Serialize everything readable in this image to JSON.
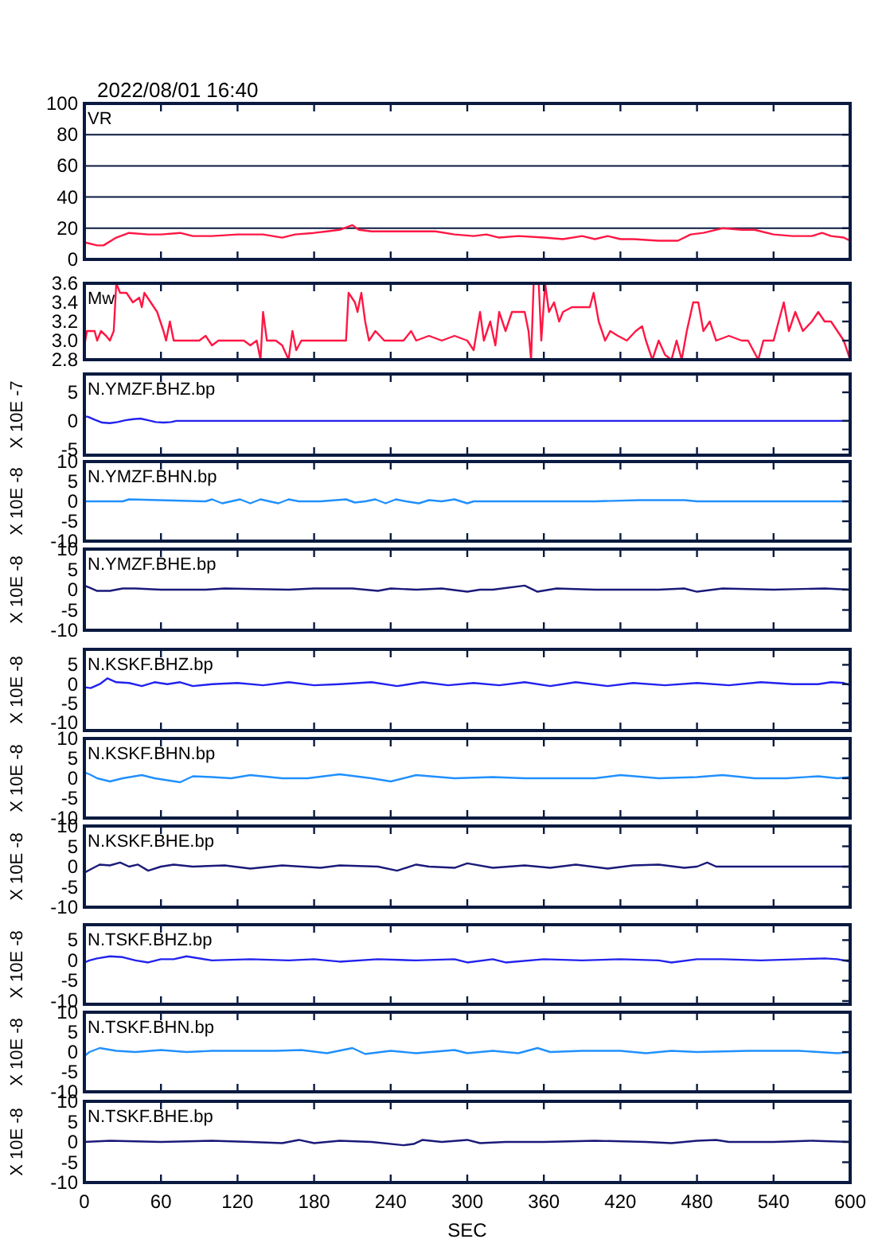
{
  "chart_data": [
    {
      "type": "line",
      "subtitle": "2022/08/01 16:40",
      "title": "VR",
      "xlim": [
        0,
        600
      ],
      "xticks": [
        0,
        60,
        120,
        180,
        240,
        300,
        360,
        420,
        480,
        540,
        600
      ],
      "ylim": [
        0,
        100
      ],
      "yticks": [
        0,
        20,
        40,
        60,
        80,
        100
      ],
      "grid": "y",
      "tick_labels": "y",
      "series": [
        {
          "color": "#ff1744",
          "x": [
            0,
            10,
            15,
            25,
            35,
            50,
            60,
            75,
            85,
            100,
            120,
            140,
            155,
            165,
            180,
            190,
            200,
            210,
            215,
            225,
            240,
            260,
            275,
            290,
            305,
            315,
            325,
            340,
            360,
            375,
            390,
            400,
            410,
            420,
            430,
            450,
            465,
            475,
            485,
            500,
            515,
            525,
            540,
            555,
            570,
            578,
            585,
            595,
            600
          ],
          "values": [
            11,
            9,
            9,
            14,
            17,
            16,
            16,
            17,
            15,
            15,
            16,
            16,
            14,
            16,
            17,
            18,
            19,
            22,
            19,
            18,
            18,
            18,
            18,
            16,
            15,
            16,
            14,
            15,
            14,
            13,
            15,
            13,
            15,
            13,
            13,
            12,
            12,
            16,
            17,
            20,
            19,
            19,
            16,
            15,
            15,
            17,
            15,
            14,
            12
          ]
        }
      ]
    },
    {
      "type": "line",
      "title": "Mw",
      "xlim": [
        0,
        600
      ],
      "xticks": [
        0,
        60,
        120,
        180,
        240,
        300,
        360,
        420,
        480,
        540,
        600
      ],
      "ylim": [
        2.8,
        3.6
      ],
      "yticks": [
        {
          "value": 2.8,
          "label": "2.8"
        },
        {
          "value": 3,
          "label": "3.0"
        },
        {
          "value": 3.2,
          "label": "3.2"
        },
        {
          "value": 3.4,
          "label": "3.4"
        },
        {
          "value": 3.6,
          "label": "3.6"
        }
      ],
      "tick_labels": "y",
      "series": [
        {
          "color": "#ff1744",
          "x": [
            0,
            2,
            8,
            10,
            13,
            17,
            20,
            23,
            25,
            28,
            33,
            38,
            43,
            45,
            47,
            52,
            57,
            62,
            64,
            67,
            70,
            80,
            90,
            95,
            100,
            105,
            115,
            125,
            130,
            135,
            138,
            140,
            143,
            150,
            155,
            160,
            163,
            166,
            170,
            180,
            195,
            205,
            207,
            212,
            214,
            217,
            220,
            223,
            228,
            235,
            245,
            250,
            256,
            260,
            270,
            280,
            290,
            300,
            305,
            310,
            313,
            318,
            322,
            325,
            330,
            335,
            345,
            348,
            350,
            352,
            356,
            358,
            361,
            364,
            368,
            372,
            375,
            382,
            388,
            396,
            399,
            403,
            408,
            412,
            418,
            425,
            432,
            437,
            440,
            445,
            450,
            455,
            460,
            464,
            468,
            472,
            477,
            481,
            485,
            490,
            495,
            505,
            515,
            520,
            528,
            532,
            540,
            548,
            552,
            557,
            563,
            570,
            575,
            580,
            585,
            590,
            595,
            600
          ],
          "values": [
            2.95,
            3.1,
            3.1,
            3.0,
            3.1,
            3.05,
            3.0,
            3.1,
            3.6,
            3.5,
            3.5,
            3.4,
            3.45,
            3.35,
            3.5,
            3.4,
            3.3,
            3.1,
            3.0,
            3.2,
            3.0,
            3.0,
            3.0,
            3.05,
            2.95,
            3.0,
            3.0,
            3.0,
            2.95,
            3.0,
            2.8,
            3.3,
            3.0,
            3.0,
            2.95,
            2.8,
            3.1,
            2.9,
            3.0,
            3.0,
            3.0,
            3.0,
            3.5,
            3.4,
            3.3,
            3.5,
            3.2,
            3.0,
            3.1,
            3.0,
            3.0,
            3.0,
            3.1,
            3.0,
            3.05,
            3.0,
            3.05,
            3.0,
            2.9,
            3.3,
            3.0,
            3.2,
            2.95,
            3.3,
            3.1,
            3.3,
            3.3,
            3.1,
            2.8,
            3.6,
            3.6,
            3.0,
            3.6,
            3.3,
            3.4,
            3.2,
            3.3,
            3.35,
            3.35,
            3.35,
            3.5,
            3.2,
            3.0,
            3.1,
            3.05,
            3.0,
            3.1,
            3.15,
            3.0,
            2.8,
            3.0,
            2.85,
            2.8,
            3.0,
            2.8,
            3.1,
            3.4,
            3.4,
            3.1,
            3.2,
            3.0,
            3.05,
            3.0,
            3.0,
            2.8,
            3.0,
            3.0,
            3.4,
            3.1,
            3.3,
            3.1,
            3.2,
            3.3,
            3.2,
            3.2,
            3.1,
            3.0,
            2.8
          ]
        }
      ]
    },
    {
      "type": "line",
      "title": "N.YMZF.BHZ.bp",
      "ylabel": "X 10E -7",
      "xlim": [
        0,
        600
      ],
      "xticks": [
        0,
        60,
        120,
        180,
        240,
        300,
        360,
        420,
        480,
        540,
        600
      ],
      "ylim": [
        -6,
        8.2
      ],
      "yticks": [
        5,
        0,
        -5
      ],
      "tick_labels": "y",
      "series": [
        {
          "color": "#2222ee",
          "x": [
            0,
            3,
            8,
            14,
            20,
            26,
            32,
            38,
            44,
            50,
            56,
            62,
            68,
            72,
            80,
            120,
            200,
            300,
            400,
            500,
            600
          ],
          "values": [
            0.8,
            0.7,
            0.2,
            -0.3,
            -0.4,
            -0.2,
            0.1,
            0.3,
            0.4,
            0.1,
            -0.2,
            -0.3,
            -0.2,
            0,
            0,
            0,
            0,
            0,
            0,
            0,
            0
          ]
        }
      ]
    },
    {
      "type": "line",
      "title": "N.YMZF.BHN.bp",
      "ylabel": "X 10E -8",
      "xlim": [
        0,
        600
      ],
      "xticks": [
        0,
        60,
        120,
        180,
        240,
        300,
        360,
        420,
        480,
        540,
        600
      ],
      "ylim": [
        -10,
        10
      ],
      "yticks": [
        10,
        5,
        0,
        -5,
        -10
      ],
      "tick_labels": "y",
      "series": [
        {
          "color": "#2090ff",
          "x": [
            0,
            30,
            35,
            95,
            100,
            108,
            115,
            122,
            130,
            138,
            145,
            152,
            160,
            168,
            175,
            185,
            205,
            212,
            220,
            228,
            236,
            244,
            252,
            262,
            270,
            280,
            290,
            300,
            305,
            320,
            400,
            435,
            470,
            480,
            520,
            560,
            600
          ],
          "values": [
            0,
            0,
            0.5,
            0,
            0.5,
            -0.5,
            0,
            0.5,
            -0.5,
            0.5,
            0,
            -0.5,
            0.5,
            0,
            0,
            0,
            0.5,
            -0.3,
            0,
            0.5,
            -0.5,
            0.5,
            0,
            -0.5,
            0.3,
            0,
            0.5,
            -0.5,
            0,
            0,
            0,
            0.3,
            0.3,
            0,
            0,
            0,
            0
          ]
        }
      ]
    },
    {
      "type": "line",
      "title": "N.YMZF.BHE.bp",
      "ylabel": "X 10E -8",
      "xlim": [
        0,
        600
      ],
      "xticks": [
        0,
        60,
        120,
        180,
        240,
        300,
        360,
        420,
        480,
        540,
        600
      ],
      "ylim": [
        -10,
        10
      ],
      "yticks": [
        10,
        5,
        0,
        -5,
        -10
      ],
      "tick_labels": "y",
      "series": [
        {
          "color": "#1a1a7a",
          "x": [
            0,
            4,
            10,
            20,
            30,
            40,
            60,
            95,
            110,
            160,
            180,
            210,
            230,
            240,
            260,
            280,
            300,
            310,
            320,
            345,
            355,
            370,
            400,
            450,
            470,
            480,
            500,
            540,
            580,
            600
          ],
          "values": [
            1,
            0.5,
            -0.3,
            -0.3,
            0.3,
            0.3,
            0,
            0,
            0.3,
            0,
            0.3,
            0.3,
            -0.3,
            0.3,
            0,
            0.3,
            -0.5,
            0,
            0,
            1,
            -0.5,
            0.3,
            0,
            0,
            0.3,
            -0.5,
            0.3,
            0,
            0.3,
            0
          ]
        }
      ]
    },
    {
      "type": "line",
      "title": "N.KSKF.BHZ.bp",
      "ylabel": "X 10E -8",
      "xlim": [
        0,
        600
      ],
      "xticks": [
        0,
        60,
        120,
        180,
        240,
        300,
        360,
        420,
        480,
        540,
        600
      ],
      "ylim": [
        -12,
        9
      ],
      "yticks": [
        5,
        0,
        -5,
        -10
      ],
      "tick_labels": "y",
      "series": [
        {
          "color": "#2222ee",
          "x": [
            0,
            5,
            12,
            18,
            25,
            35,
            45,
            55,
            65,
            75,
            85,
            100,
            120,
            140,
            160,
            180,
            200,
            225,
            245,
            265,
            285,
            305,
            325,
            345,
            365,
            385,
            410,
            430,
            455,
            480,
            505,
            530,
            555,
            575,
            585,
            595,
            600
          ],
          "values": [
            -0.8,
            -1,
            0,
            1.5,
            0.5,
            0.3,
            -0.5,
            0.5,
            0,
            0.5,
            -0.5,
            0,
            0.3,
            -0.3,
            0.5,
            -0.3,
            0,
            0.5,
            -0.5,
            0.5,
            -0.3,
            0.3,
            -0.3,
            0.5,
            -0.5,
            0.5,
            -0.5,
            0.3,
            -0.3,
            0.3,
            -0.3,
            0.5,
            0,
            0,
            0.5,
            0.3,
            -0.3
          ]
        }
      ]
    },
    {
      "type": "line",
      "title": "N.KSKF.BHN.bp",
      "ylabel": "X 10E -8",
      "xlim": [
        0,
        600
      ],
      "xticks": [
        0,
        60,
        120,
        180,
        240,
        300,
        360,
        420,
        480,
        540,
        600
      ],
      "ylim": [
        -10,
        10
      ],
      "yticks": [
        10,
        5,
        0,
        -5,
        -10
      ],
      "tick_labels": "y",
      "series": [
        {
          "color": "#2090ff",
          "x": [
            0,
            4,
            10,
            20,
            30,
            45,
            55,
            65,
            75,
            85,
            100,
            115,
            130,
            155,
            175,
            200,
            225,
            240,
            260,
            290,
            320,
            345,
            370,
            400,
            420,
            450,
            480,
            500,
            525,
            550,
            575,
            590,
            600
          ],
          "values": [
            1.5,
            1,
            0,
            -0.8,
            0,
            0.8,
            0,
            -0.5,
            -1,
            0.5,
            0.3,
            0,
            0.8,
            0,
            0,
            1,
            0,
            -0.8,
            0.8,
            0,
            0.3,
            0,
            0,
            0,
            0.8,
            0,
            0.3,
            0.8,
            0,
            0,
            0.5,
            0,
            0.3
          ]
        }
      ]
    },
    {
      "type": "line",
      "title": "N.KSKF.BHE.bp",
      "ylabel": "X 10E -8",
      "xlim": [
        0,
        600
      ],
      "xticks": [
        0,
        60,
        120,
        180,
        240,
        300,
        360,
        420,
        480,
        540,
        600
      ],
      "ylim": [
        -10,
        10
      ],
      "yticks": [
        10,
        5,
        0,
        -5,
        -10
      ],
      "tick_labels": "y",
      "series": [
        {
          "color": "#1a1a7a",
          "x": [
            0,
            6,
            12,
            20,
            28,
            35,
            42,
            50,
            60,
            70,
            85,
            110,
            130,
            155,
            185,
            200,
            230,
            245,
            260,
            270,
            290,
            300,
            320,
            345,
            365,
            385,
            410,
            430,
            450,
            470,
            480,
            488,
            495,
            520,
            560,
            600
          ],
          "values": [
            -1.5,
            -0.5,
            0.5,
            0.3,
            1,
            0,
            0.5,
            -1,
            0,
            0.5,
            0,
            0.3,
            -0.5,
            0.3,
            -0.3,
            0.3,
            0,
            -1,
            0.5,
            0,
            -0.3,
            0.8,
            -0.3,
            0.3,
            -0.3,
            0.5,
            -0.5,
            0.3,
            0.5,
            -0.3,
            0,
            1,
            0,
            0,
            0,
            0
          ]
        }
      ]
    },
    {
      "type": "line",
      "title": "N.TSKF.BHZ.bp",
      "ylabel": "X 10E -8",
      "xlim": [
        0,
        600
      ],
      "xticks": [
        0,
        60,
        120,
        180,
        240,
        300,
        360,
        420,
        480,
        540,
        600
      ],
      "ylim": [
        -10.8,
        8.8
      ],
      "yticks": [
        5,
        0,
        -5,
        -10
      ],
      "tick_labels": "y",
      "series": [
        {
          "color": "#2222ee",
          "x": [
            0,
            4,
            10,
            20,
            30,
            40,
            50,
            60,
            70,
            80,
            100,
            130,
            160,
            180,
            200,
            230,
            260,
            290,
            300,
            320,
            330,
            360,
            390,
            420,
            450,
            460,
            480,
            500,
            530,
            560,
            580,
            590,
            600
          ],
          "values": [
            -0.5,
            0,
            0.5,
            1,
            0.8,
            0,
            -0.5,
            0.3,
            0.3,
            1,
            0,
            0.3,
            0,
            0.3,
            -0.3,
            0.3,
            0,
            0.3,
            -0.5,
            0.3,
            -0.5,
            0.3,
            0,
            0.3,
            0,
            -0.5,
            0.3,
            0.3,
            0,
            0.3,
            0.5,
            0.3,
            -0.3
          ]
        }
      ]
    },
    {
      "type": "line",
      "title": "N.TSKF.BHN.bp",
      "ylabel": "X 10E -8",
      "xlim": [
        0,
        600
      ],
      "xticks": [
        0,
        60,
        120,
        180,
        240,
        300,
        360,
        420,
        480,
        540,
        600
      ],
      "ylim": [
        -10,
        10
      ],
      "yticks": [
        10,
        5,
        0,
        -5,
        -10
      ],
      "tick_labels": "y",
      "series": [
        {
          "color": "#2090ff",
          "x": [
            0,
            4,
            12,
            25,
            40,
            60,
            80,
            100,
            150,
            170,
            190,
            210,
            220,
            240,
            260,
            290,
            300,
            320,
            340,
            355,
            365,
            390,
            420,
            440,
            460,
            480,
            520,
            560,
            590,
            600
          ],
          "values": [
            -1,
            0,
            1,
            0.3,
            0,
            0.5,
            0,
            0.3,
            0.3,
            0.5,
            -0.3,
            1,
            -0.5,
            0.3,
            -0.3,
            0.5,
            -0.3,
            0.3,
            -0.3,
            1,
            0,
            0.3,
            0.3,
            -0.3,
            0.3,
            0,
            0.3,
            0.3,
            -0.3,
            0
          ]
        }
      ]
    },
    {
      "type": "line",
      "title": "N.TSKF.BHE.bp",
      "ylabel": "X 10E -8",
      "xlabel": "SEC",
      "xlim": [
        0,
        600
      ],
      "xticks": [
        0,
        60,
        120,
        180,
        240,
        300,
        360,
        420,
        480,
        540,
        600
      ],
      "ylim": [
        -10,
        10
      ],
      "yticks": [
        10,
        5,
        0,
        -5,
        -10
      ],
      "series": [
        {
          "color": "#1a1a7a",
          "x": [
            0,
            20,
            60,
            100,
            130,
            155,
            168,
            180,
            200,
            225,
            250,
            258,
            265,
            280,
            300,
            310,
            330,
            360,
            400,
            440,
            460,
            480,
            495,
            505,
            540,
            570,
            600
          ],
          "values": [
            0,
            0.3,
            0,
            0.3,
            0,
            -0.3,
            0.5,
            -0.3,
            0.3,
            0,
            -0.8,
            -0.5,
            0.5,
            0,
            0.5,
            -0.3,
            0,
            0,
            0.3,
            0,
            -0.3,
            0.3,
            0.5,
            0,
            0,
            0.3,
            0
          ]
        }
      ]
    }
  ]
}
